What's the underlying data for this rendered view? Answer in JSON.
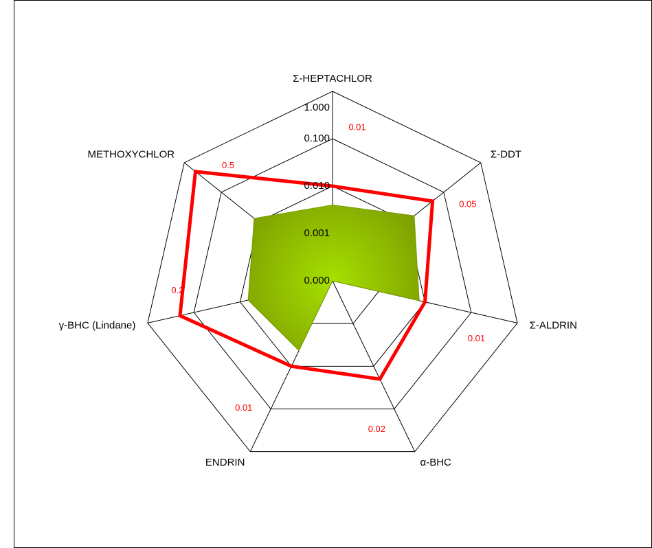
{
  "chart_data": {
    "type": "radar",
    "categories": [
      "Σ-HEPTACHLOR",
      "Σ-DDT",
      "Σ-ALDRIN",
      "α-BHC",
      "ENDRIN",
      "γ-BHC (Lindane)",
      "METHOXYCHLOR"
    ],
    "log_scale": true,
    "ylim": [
      0.0001,
      1
    ],
    "yticks": [
      {
        "value": 0.0001,
        "label": "0.000"
      },
      {
        "value": 0.001,
        "label": "0.001"
      },
      {
        "value": 0.01,
        "label": "0.010"
      },
      {
        "value": 0.1,
        "label": "0.100"
      },
      {
        "value": 1,
        "label": "1.000"
      }
    ],
    "grid": true,
    "series": [
      {
        "color": "#7a9a00",
        "fill": true,
        "values": [
          0.004,
          0.016,
          0.0075,
          0.0001,
          0.0043,
          0.0067,
          0.013
        ]
      },
      {
        "color": "#ff0000",
        "fill": false,
        "values": [
          0.01,
          0.05,
          0.01,
          0.02,
          0.01,
          0.2,
          0.5
        ],
        "show_labels": true
      }
    ]
  }
}
